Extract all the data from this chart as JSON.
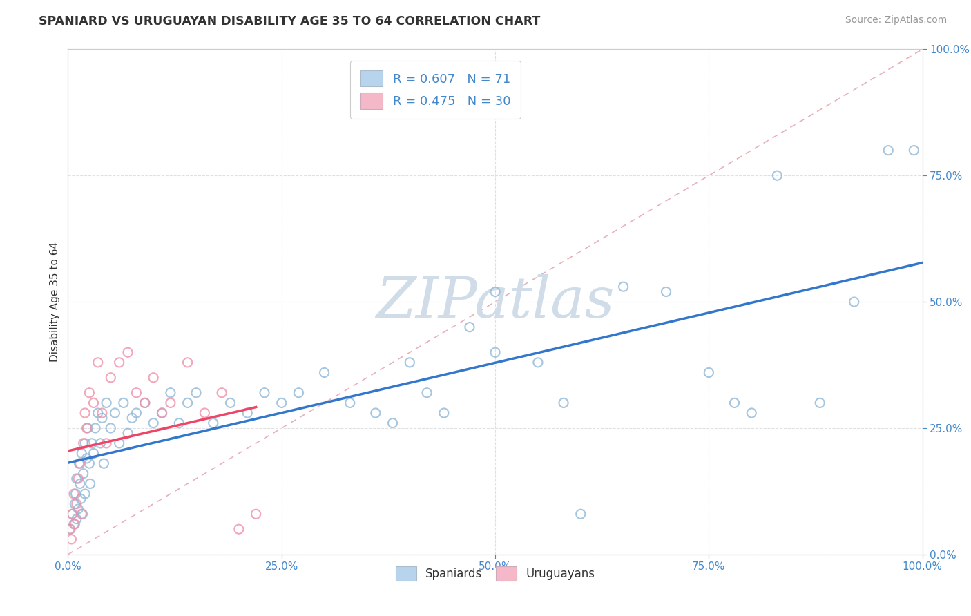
{
  "title": "SPANIARD VS URUGUAYAN DISABILITY AGE 35 TO 64 CORRELATION CHART",
  "source": "Source: ZipAtlas.com",
  "ylabel": "Disability Age 35 to 64",
  "legend_label_spaniards": "Spaniards",
  "legend_label_uruguayans": "Uruguayans",
  "r_spaniard": 0.607,
  "n_spaniard": 71,
  "r_uruguayan": 0.475,
  "n_uruguayan": 30,
  "ytick_labels": [
    "0.0%",
    "25.0%",
    "50.0%",
    "75.0%",
    "100.0%"
  ],
  "ytick_values": [
    0,
    25,
    50,
    75,
    100
  ],
  "xtick_labels": [
    "0.0%",
    "25.0%",
    "50.0%",
    "75.0%",
    "100.0%"
  ],
  "xtick_values": [
    0,
    25,
    50,
    75,
    100
  ],
  "background_color": "#ffffff",
  "grid_color": "#e0e0e0",
  "blue_scatter_face": "none",
  "blue_scatter_edge": "#90b8d8",
  "pink_scatter_face": "none",
  "pink_scatter_edge": "#f090a8",
  "blue_line_color": "#3377cc",
  "pink_line_color": "#ee4466",
  "diag_line_color": "#e8b0b8",
  "text_color_blue": "#4488cc",
  "text_color_dark": "#333333",
  "source_color": "#999999",
  "blue_legend_face": "#b8d4ed",
  "pink_legend_face": "#f5b8c8",
  "spaniard_x": [
    0.3,
    0.5,
    0.7,
    0.8,
    0.9,
    1.0,
    1.0,
    1.2,
    1.3,
    1.4,
    1.5,
    1.6,
    1.7,
    1.8,
    2.0,
    2.0,
    2.2,
    2.3,
    2.5,
    2.6,
    2.8,
    3.0,
    3.2,
    3.5,
    3.8,
    4.0,
    4.2,
    4.5,
    5.0,
    5.5,
    6.0,
    6.5,
    7.0,
    7.5,
    8.0,
    9.0,
    10.0,
    11.0,
    12.0,
    13.0,
    14.0,
    15.0,
    17.0,
    19.0,
    21.0,
    23.0,
    25.0,
    27.0,
    30.0,
    33.0,
    36.0,
    38.0,
    40.0,
    42.0,
    44.0,
    47.0,
    50.0,
    50.0,
    55.0,
    58.0,
    60.0,
    65.0,
    70.0,
    75.0,
    78.0,
    80.0,
    83.0,
    88.0,
    92.0,
    96.0,
    99.0
  ],
  "spaniard_y": [
    5.0,
    8.0,
    6.0,
    10.0,
    12.0,
    7.0,
    15.0,
    9.0,
    18.0,
    14.0,
    11.0,
    20.0,
    8.0,
    16.0,
    22.0,
    12.0,
    19.0,
    25.0,
    18.0,
    14.0,
    22.0,
    20.0,
    25.0,
    28.0,
    22.0,
    27.0,
    18.0,
    30.0,
    25.0,
    28.0,
    22.0,
    30.0,
    24.0,
    27.0,
    28.0,
    30.0,
    26.0,
    28.0,
    32.0,
    26.0,
    30.0,
    32.0,
    26.0,
    30.0,
    28.0,
    32.0,
    30.0,
    32.0,
    36.0,
    30.0,
    28.0,
    26.0,
    38.0,
    32.0,
    28.0,
    45.0,
    40.0,
    52.0,
    38.0,
    30.0,
    8.0,
    53.0,
    52.0,
    36.0,
    30.0,
    28.0,
    75.0,
    30.0,
    50.0,
    80.0,
    80.0
  ],
  "uruguayan_x": [
    0.2,
    0.4,
    0.5,
    0.7,
    0.8,
    1.0,
    1.2,
    1.4,
    1.6,
    1.8,
    2.0,
    2.2,
    2.5,
    3.0,
    3.5,
    4.0,
    4.5,
    5.0,
    6.0,
    7.0,
    8.0,
    9.0,
    10.0,
    11.0,
    12.0,
    14.0,
    16.0,
    18.0,
    20.0,
    22.0
  ],
  "uruguayan_y": [
    5.0,
    3.0,
    8.0,
    12.0,
    6.0,
    10.0,
    15.0,
    18.0,
    8.0,
    22.0,
    28.0,
    25.0,
    32.0,
    30.0,
    38.0,
    28.0,
    22.0,
    35.0,
    38.0,
    40.0,
    32.0,
    30.0,
    35.0,
    28.0,
    30.0,
    38.0,
    28.0,
    32.0,
    5.0,
    8.0
  ]
}
